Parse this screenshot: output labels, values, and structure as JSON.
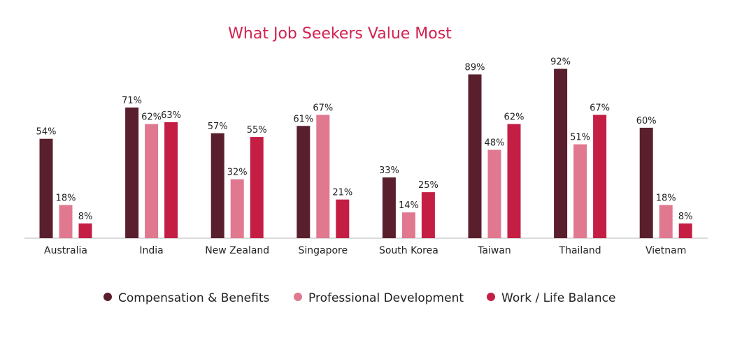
{
  "chart_data": {
    "type": "bar",
    "title": "What Job Seekers Value Most",
    "xlabel": "",
    "ylabel": "",
    "ylim": [
      0,
      100
    ],
    "grid": false,
    "legend_position": "bottom",
    "categories": [
      "Australia",
      "India",
      "New Zealand",
      "Singapore",
      "South Korea",
      "Taiwan",
      "Thailand",
      "Vietnam"
    ],
    "series": [
      {
        "name": "Compensation & Benefits",
        "color": "#5a1f2d",
        "values": [
          54,
          71,
          57,
          61,
          33,
          89,
          92,
          60
        ]
      },
      {
        "name": "Professional Development",
        "color": "#e07890",
        "values": [
          18,
          62,
          32,
          67,
          14,
          48,
          51,
          18
        ]
      },
      {
        "name": "Work / Life Balance",
        "color": "#c41e45",
        "values": [
          8,
          63,
          55,
          21,
          25,
          62,
          67,
          8
        ]
      }
    ],
    "value_suffix": "%"
  }
}
